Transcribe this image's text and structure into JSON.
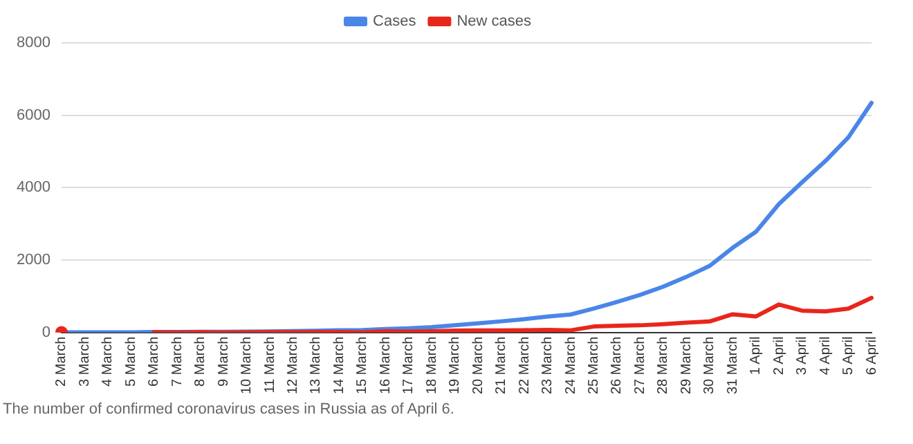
{
  "chart_data": {
    "type": "line",
    "categories": [
      "2 March",
      "3 March",
      "4 March",
      "5 March",
      "6 March",
      "7 March",
      "8 March",
      "9 March",
      "10 March",
      "11 March",
      "12 March",
      "13 March",
      "14 March",
      "15 March",
      "16 March",
      "17 March",
      "18 March",
      "19 March",
      "20 March",
      "21 March",
      "22 March",
      "23 March",
      "24 March",
      "25 March",
      "26 March",
      "27 March",
      "28 March",
      "29 March",
      "30 March",
      "31 March",
      "1 April",
      "2 April",
      "3 April",
      "4 April",
      "5 April",
      "6 April"
    ],
    "series": [
      {
        "name": "Cases",
        "color": "#4a86e8",
        "values": [
          3,
          3,
          3,
          4,
          10,
          10,
          17,
          17,
          20,
          28,
          34,
          45,
          59,
          63,
          93,
          114,
          147,
          199,
          253,
          306,
          367,
          438,
          495,
          658,
          840,
          1036,
          1264,
          1534,
          1836,
          2337,
          2777,
          3548,
          4149,
          4731,
          5389,
          6343
        ]
      },
      {
        "name": "New cases",
        "color": "#e8261c",
        "values": [
          3,
          null,
          null,
          null,
          6,
          0,
          7,
          0,
          3,
          8,
          6,
          11,
          14,
          4,
          30,
          21,
          33,
          52,
          54,
          53,
          61,
          71,
          57,
          163,
          182,
          196,
          228,
          270,
          302,
          501,
          440,
          771,
          601,
          582,
          658,
          954
        ]
      }
    ],
    "ylim": [
      0,
      8000
    ],
    "yticks": [
      0,
      2000,
      4000,
      6000,
      8000
    ],
    "grid": "y",
    "legend": "top",
    "marker": "none",
    "line_style": "solid",
    "annotations": [
      "The number of confirmed coronavirus cases in Russia as of April 6."
    ]
  }
}
